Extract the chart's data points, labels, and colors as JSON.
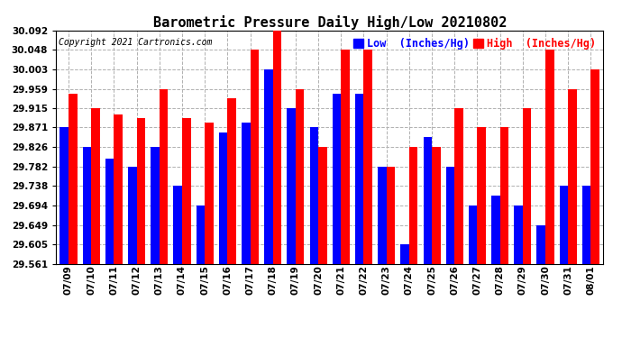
{
  "title": "Barometric Pressure Daily High/Low 20210802",
  "copyright": "Copyright 2021 Cartronics.com",
  "legend_low": "Low  (Inches/Hg)",
  "legend_high": "High  (Inches/Hg)",
  "dates": [
    "07/09",
    "07/10",
    "07/11",
    "07/12",
    "07/13",
    "07/14",
    "07/15",
    "07/16",
    "07/17",
    "07/18",
    "07/19",
    "07/20",
    "07/21",
    "07/22",
    "07/23",
    "07/24",
    "07/25",
    "07/26",
    "07/27",
    "07/28",
    "07/29",
    "07/30",
    "07/31",
    "08/01"
  ],
  "low": [
    29.871,
    29.826,
    29.8,
    29.782,
    29.826,
    29.738,
    29.694,
    29.86,
    29.882,
    30.003,
    29.915,
    29.871,
    29.948,
    29.948,
    29.782,
    29.605,
    29.849,
    29.782,
    29.694,
    29.715,
    29.694,
    29.649,
    29.738,
    29.738
  ],
  "high": [
    29.948,
    29.915,
    29.9,
    29.893,
    29.959,
    29.893,
    29.882,
    29.937,
    30.048,
    30.092,
    29.959,
    29.826,
    30.048,
    30.048,
    29.782,
    29.826,
    29.826,
    29.915,
    29.871,
    29.871,
    29.915,
    30.048,
    29.959,
    30.003
  ],
  "ylim_min": 29.561,
  "ylim_max": 30.092,
  "yticks": [
    29.561,
    29.605,
    29.649,
    29.694,
    29.738,
    29.782,
    29.826,
    29.871,
    29.915,
    29.959,
    30.003,
    30.048,
    30.092
  ],
  "bar_width": 0.38,
  "low_color": "#0000ff",
  "high_color": "#ff0000",
  "background_color": "#ffffff",
  "grid_color": "#b0b0b0",
  "title_fontsize": 11,
  "tick_fontsize": 7.5,
  "legend_fontsize": 8.5,
  "copyright_fontsize": 7
}
